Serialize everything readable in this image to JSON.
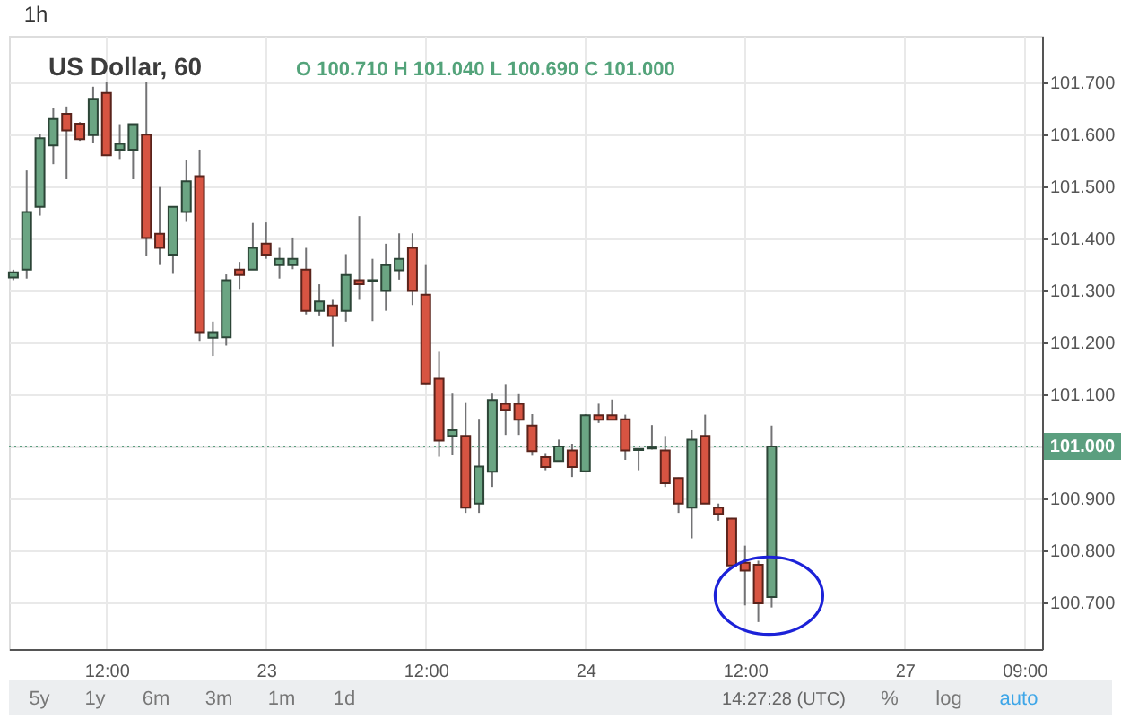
{
  "chart_data": {
    "type": "candlestick",
    "title": "US Dollar, 60",
    "subtitle": "O 100.710 H 101.040 L 100.690 C 101.000",
    "annotations": [
      "1h",
      "5y",
      "1y",
      "6m",
      "3m",
      "1m",
      "1d",
      "14:27:28 (UTC)",
      "%",
      "log",
      "auto"
    ],
    "categories": [
      null,
      null,
      null,
      null,
      null,
      null,
      null,
      "12:00",
      null,
      null,
      null,
      null,
      null,
      null,
      null,
      null,
      null,
      null,
      null,
      "23",
      null,
      null,
      null,
      null,
      null,
      null,
      null,
      null,
      null,
      null,
      null,
      "12:00",
      null,
      null,
      null,
      null,
      null,
      null,
      null,
      null,
      null,
      null,
      null,
      "24",
      null,
      null,
      null,
      null,
      null,
      null,
      null,
      null,
      null,
      null,
      null,
      "12:00",
      null,
      null,
      null,
      null,
      null,
      null,
      null,
      null,
      null,
      null,
      null,
      "27",
      null,
      null,
      null,
      null,
      null,
      null,
      null,
      null,
      "09:00",
      null
    ],
    "ohlc": [
      [
        101.325,
        101.34,
        101.32,
        101.335
      ],
      [
        101.34,
        101.531,
        101.323,
        101.451
      ],
      [
        101.461,
        101.602,
        101.444,
        101.593
      ],
      [
        101.579,
        101.651,
        101.543,
        101.63
      ],
      [
        101.64,
        101.654,
        101.514,
        101.608
      ],
      [
        101.621,
        101.624,
        101.588,
        101.591
      ],
      [
        101.599,
        101.692,
        101.583,
        101.669
      ],
      [
        101.68,
        101.702,
        101.56,
        101.56
      ],
      [
        101.571,
        101.62,
        101.553,
        101.582
      ],
      [
        101.571,
        101.62,
        101.514,
        101.62
      ],
      [
        101.6,
        101.702,
        101.367,
        101.401
      ],
      [
        101.409,
        101.499,
        101.349,
        101.382
      ],
      [
        101.369,
        101.462,
        101.332,
        101.461
      ],
      [
        101.451,
        101.551,
        101.432,
        101.51
      ],
      [
        101.52,
        101.571,
        101.203,
        101.22
      ],
      [
        101.209,
        101.24,
        101.174,
        101.22
      ],
      [
        101.21,
        101.331,
        101.194,
        101.32
      ],
      [
        101.34,
        101.355,
        101.303,
        101.33
      ],
      [
        101.34,
        101.43,
        101.34,
        101.382
      ],
      [
        101.39,
        101.431,
        101.361,
        101.369
      ],
      [
        101.349,
        101.382,
        101.323,
        101.361
      ],
      [
        101.349,
        101.402,
        101.341,
        101.361
      ],
      [
        101.34,
        101.382,
        101.254,
        101.261
      ],
      [
        101.261,
        101.312,
        101.252,
        101.279
      ],
      [
        101.271,
        101.282,
        101.192,
        101.251
      ],
      [
        101.261,
        101.37,
        101.24,
        101.33
      ],
      [
        101.32,
        101.443,
        101.282,
        101.312
      ],
      [
        101.318,
        101.361,
        101.241,
        101.32
      ],
      [
        101.299,
        101.39,
        101.261,
        101.349
      ],
      [
        101.339,
        101.41,
        101.321,
        101.361
      ],
      [
        101.382,
        101.41,
        101.272,
        101.299
      ],
      [
        101.292,
        101.349,
        101.12,
        101.121
      ],
      [
        101.13,
        101.182,
        100.98,
        101.011
      ],
      [
        101.02,
        101.103,
        100.983,
        101.031
      ],
      [
        101.02,
        101.085,
        100.872,
        100.882
      ],
      [
        100.89,
        101.053,
        100.872,
        100.961
      ],
      [
        100.951,
        101.103,
        100.922,
        101.089
      ],
      [
        101.082,
        101.12,
        101.022,
        101.07
      ],
      [
        101.082,
        101.102,
        101.022,
        101.051
      ],
      [
        101.04,
        101.062,
        100.982,
        100.991
      ],
      [
        100.979,
        100.987,
        100.954,
        100.96
      ],
      [
        100.972,
        101.013,
        100.972,
        101.0
      ],
      [
        100.992,
        101.005,
        100.941,
        100.96
      ],
      [
        100.952,
        101.062,
        100.95,
        101.06
      ],
      [
        101.06,
        101.082,
        101.045,
        101.051
      ],
      [
        101.06,
        101.09,
        101.051,
        101.051
      ],
      [
        101.052,
        101.061,
        100.974,
        100.992
      ],
      [
        100.993,
        100.995,
        100.954,
        100.995
      ],
      [
        100.996,
        101.041,
        100.994,
        100.998
      ],
      [
        100.992,
        101.02,
        100.922,
        100.929
      ],
      [
        100.939,
        100.94,
        100.872,
        100.89
      ],
      [
        100.882,
        101.031,
        100.823,
        101.013
      ],
      [
        101.02,
        101.061,
        100.89,
        100.89
      ],
      [
        100.882,
        100.89,
        100.857,
        100.87
      ],
      [
        100.861,
        100.862,
        100.77,
        100.771
      ],
      [
        100.776,
        100.809,
        100.694,
        100.761
      ],
      [
        100.772,
        100.78,
        100.662,
        100.698
      ],
      [
        100.71,
        101.04,
        100.69,
        101.0
      ],
      null,
      null,
      null,
      null,
      null,
      null,
      null,
      null,
      null,
      null,
      null,
      null,
      null,
      null,
      null,
      null,
      null,
      null,
      null,
      null
    ],
    "colors": [
      "#6ba583",
      "#6ba583",
      "#6ba583",
      "#6ba583",
      "#d75442",
      "#d75442",
      "#6ba583",
      "#d75442",
      "#6ba583",
      "#6ba583",
      "#d75442",
      "#d75442",
      "#6ba583",
      "#6ba583",
      "#d75442",
      "#6ba583",
      "#6ba583",
      "#d75442",
      "#6ba583",
      "#d75442",
      "#6ba583",
      "#6ba583",
      "#d75442",
      "#6ba583",
      "#d75442",
      "#6ba583",
      "#d75442",
      "#6ba583",
      "#6ba583",
      "#6ba583",
      "#d75442",
      "#d75442",
      "#d75442",
      "#6ba583",
      "#d75442",
      "#6ba583",
      "#6ba583",
      "#d75442",
      "#d75442",
      "#d75442",
      "#d75442",
      "#6ba583",
      "#d75442",
      "#6ba583",
      "#d75442",
      "#d75442",
      "#d75442",
      "#6ba583",
      "#6ba583",
      "#d75442",
      "#d75442",
      "#6ba583",
      "#d75442",
      "#d75442",
      "#d75442",
      "#d75442",
      "#d75442",
      "#6ba583",
      null,
      null,
      null,
      null,
      null,
      null,
      null,
      null,
      null,
      null,
      null,
      null,
      null,
      null,
      null,
      null,
      null,
      null,
      null,
      null
    ],
    "ylim": [
      100.61,
      101.79
    ],
    "yticks": [
      {
        "value": 100.7,
        "label": "100.700"
      },
      {
        "value": 100.8,
        "label": "100.800"
      },
      {
        "value": 100.9,
        "label": "100.900"
      },
      {
        "value": 101.0,
        "label": null
      },
      {
        "value": 101.1,
        "label": "101.100"
      },
      {
        "value": 101.2,
        "label": "101.200"
      },
      {
        "value": 101.3,
        "label": "101.300"
      },
      {
        "value": 101.4,
        "label": "101.400"
      },
      {
        "value": 101.5,
        "label": "101.500"
      },
      {
        "value": 101.6,
        "label": "101.600"
      },
      {
        "value": 101.7,
        "label": "101.700"
      }
    ],
    "grid": true,
    "ref_lines": [
      {
        "axis": "y",
        "value": 101.0,
        "label": "101.000",
        "color": "#5b9f7f",
        "line_style": "dotted"
      }
    ]
  }
}
